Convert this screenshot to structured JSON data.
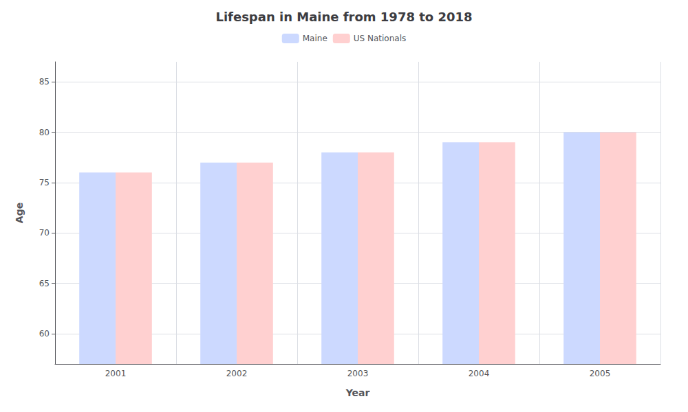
{
  "chart_data": {
    "type": "bar",
    "title": "Lifespan in Maine from 1978 to 2018",
    "xlabel": "Year",
    "ylabel": "Age",
    "categories": [
      2001,
      2002,
      2003,
      2004,
      2005
    ],
    "series": [
      {
        "name": "Maine",
        "color": "#ccd9ff",
        "values": [
          76.0,
          77.0,
          78.0,
          79.0,
          80.0
        ]
      },
      {
        "name": "US Nationals",
        "color": "#ffd0d0",
        "values": [
          76.0,
          77.0,
          78.0,
          79.0,
          80.0
        ]
      }
    ],
    "ylim": [
      57,
      87
    ],
    "yticks": [
      60,
      65,
      70,
      75,
      80,
      85
    ],
    "grid": true,
    "legend": "top"
  }
}
